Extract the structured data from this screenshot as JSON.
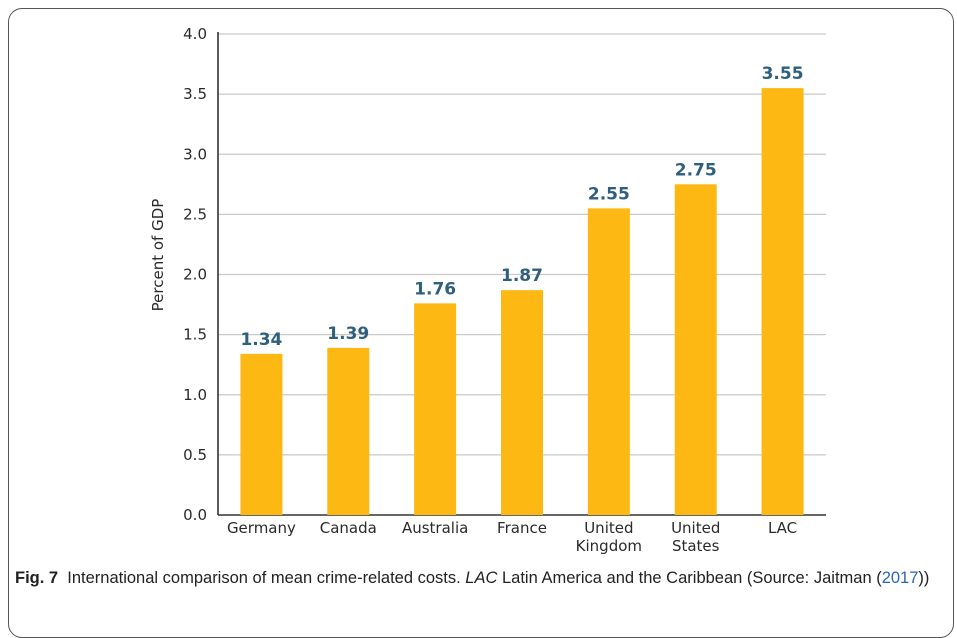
{
  "chart_data": {
    "type": "bar",
    "categories": [
      "Germany",
      "Canada",
      "Australia",
      "France",
      "United\nKingdom",
      "United\nStates",
      "LAC"
    ],
    "values": [
      1.34,
      1.39,
      1.76,
      1.87,
      2.55,
      2.75,
      3.55
    ],
    "data_labels": [
      "1.34",
      "1.39",
      "1.76",
      "1.87",
      "2.55",
      "2.75",
      "3.55"
    ],
    "ylabel": "Percent of GDP",
    "xlabel": "",
    "ylim": [
      0,
      4.0
    ],
    "yticks": [
      "0.0",
      "0.5",
      "1.0",
      "1.5",
      "2.0",
      "2.5",
      "3.0",
      "3.5",
      "4.0"
    ],
    "grid": true,
    "bar_color": "#FDB813",
    "label_color": "#2E5F7D"
  },
  "caption": {
    "fig_label": "Fig. 7",
    "text_1": "International comparison of mean crime-related costs.",
    "abbr": "LAC",
    "text_2": "Latin America and the Caribbean (Source: Jaitman (",
    "cite_year": "2017",
    "text_3": "))"
  }
}
